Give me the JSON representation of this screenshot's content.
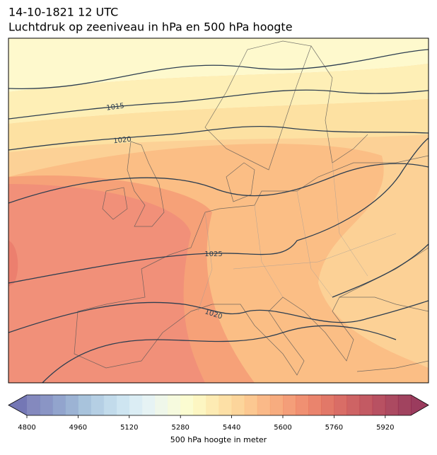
{
  "header": {
    "title": "14-10-1821 12 UTC",
    "subtitle": "Luchtdruk op zeeniveau in hPa en 500 hPa hoogte"
  },
  "map": {
    "isobar_labels": [
      1015,
      1020,
      1025,
      1020
    ]
  },
  "colorbar": {
    "label": "500 hPa hoogte in meter",
    "lim": [
      4800,
      6000
    ],
    "ticks": [
      4800,
      4960,
      5120,
      5280,
      5440,
      5600,
      5760,
      5920
    ],
    "colors": [
      "#6f74b3",
      "#7582bb",
      "#7f94c4",
      "#8ba6cd",
      "#99b8d6",
      "#a8c7df",
      "#b7d5e7",
      "#c6e1ee",
      "#d5eaf2",
      "#e2f1f2",
      "#ecf6e6",
      "#f4f9d8",
      "#fafbc9",
      "#fdf4b7",
      "#fde8a6",
      "#fddb97",
      "#fcce8a",
      "#fbbe7e",
      "#f9ad73",
      "#f69d69",
      "#f28d61",
      "#ed7d59",
      "#e66e53",
      "#dd604e",
      "#d2544b",
      "#c64849",
      "#b93d48",
      "#ab3347",
      "#9d2a45",
      "#902243"
    ]
  }
}
